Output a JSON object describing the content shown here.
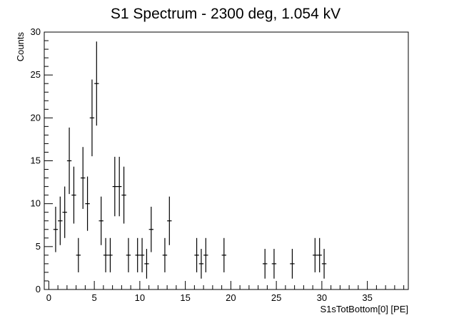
{
  "chart_data": {
    "type": "scatter",
    "title": "S1 Spectrum - 2300 deg, 1.054 kV",
    "xlabel": "S1sTotBottom[0] [PE]",
    "ylabel": "Counts",
    "xlim": [
      -0.5,
      39.5
    ],
    "ylim": [
      0,
      30
    ],
    "xticks": [
      0,
      5,
      10,
      15,
      20,
      25,
      30,
      35
    ],
    "yticks": [
      0,
      5,
      10,
      15,
      20,
      25,
      30
    ],
    "bin_width": 0.5,
    "grid": false,
    "legend": "none",
    "series": [
      {
        "x": [
          0.75,
          1.25,
          1.75,
          2.25,
          2.75,
          3.25,
          3.75,
          4.25,
          4.75,
          5.25,
          5.75,
          6.25,
          6.75,
          7.25,
          7.75,
          8.25,
          8.75,
          9.75,
          10.25,
          10.75,
          11.25,
          12.75,
          13.25,
          16.25,
          16.75,
          17.25,
          19.25,
          23.75,
          24.75,
          26.75,
          29.25,
          29.75,
          30.25
        ],
        "y": [
          7,
          8,
          9,
          15,
          11,
          4,
          13,
          10,
          20,
          24,
          8,
          4,
          4,
          12,
          12,
          11,
          4,
          4,
          4,
          3,
          7,
          4,
          8,
          4,
          3,
          4,
          4,
          3,
          3,
          3,
          4,
          4,
          3
        ]
      }
    ]
  }
}
